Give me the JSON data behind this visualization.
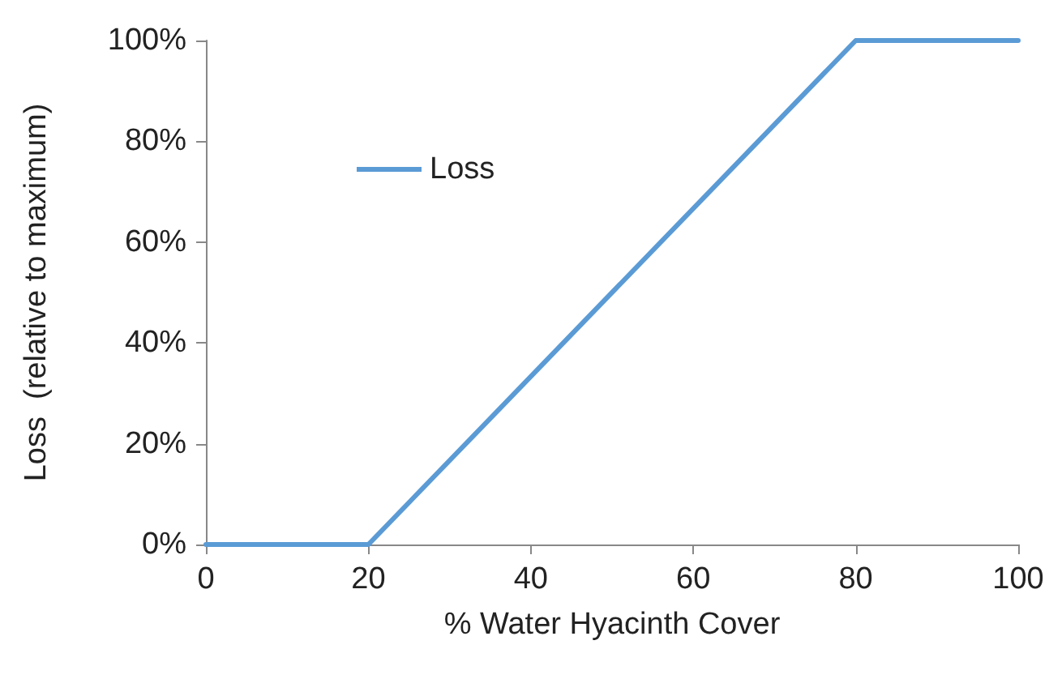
{
  "chart_data": {
    "type": "line",
    "xlabel": "% Water Hyacinth Cover",
    "ylabel": "Loss  (relative to maximum)",
    "x": [
      0,
      20,
      80,
      100
    ],
    "series": [
      {
        "name": "Loss",
        "color": "#5b9bd5",
        "values": [
          0,
          0,
          100,
          100
        ]
      }
    ],
    "xlim": [
      0,
      100
    ],
    "xticks": [
      0,
      20,
      40,
      60,
      80,
      100
    ],
    "ylim": [
      0,
      100
    ],
    "yticks": [
      {
        "value": 0,
        "label": "0%"
      },
      {
        "value": 20,
        "label": "20%"
      },
      {
        "value": 40,
        "label": "40%"
      },
      {
        "value": 60,
        "label": "60%"
      },
      {
        "value": 80,
        "label": "80%"
      },
      {
        "value": 100,
        "label": "100%"
      }
    ],
    "grid": false,
    "legend": "top left",
    "marker": "none",
    "line_style": "solid"
  }
}
